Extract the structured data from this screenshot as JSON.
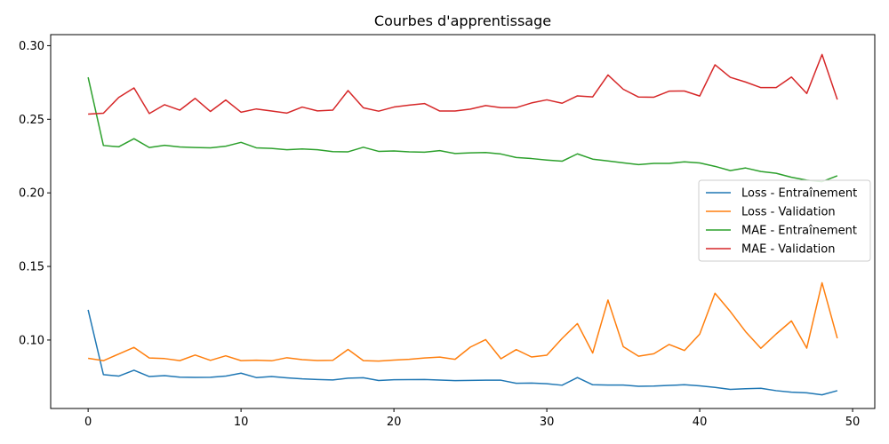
{
  "chart_data": {
    "type": "line",
    "title": "Courbes d'apprentissage",
    "xlabel": "",
    "ylabel": "",
    "xlim": [
      -2.45,
      51.45
    ],
    "ylim": [
      0.0535,
      0.3075
    ],
    "xticks": [
      0,
      10,
      20,
      30,
      40,
      50
    ],
    "yticks": [
      0.1,
      0.15,
      0.2,
      0.25,
      0.3
    ],
    "ytick_labels": [
      "0.10",
      "0.15",
      "0.20",
      "0.25",
      "0.30"
    ],
    "grid": false,
    "legend_position": "center-right",
    "x": [
      0,
      1,
      2,
      3,
      4,
      5,
      6,
      7,
      8,
      9,
      10,
      11,
      12,
      13,
      14,
      15,
      16,
      17,
      18,
      19,
      20,
      21,
      22,
      23,
      24,
      25,
      26,
      27,
      28,
      29,
      30,
      31,
      32,
      33,
      34,
      35,
      36,
      37,
      38,
      39,
      40,
      41,
      42,
      43,
      44,
      45,
      46,
      47,
      48,
      49
    ],
    "series": [
      {
        "name": "Loss - Entraînement",
        "color": "#1f77b4",
        "values": [
          0.1205,
          0.0765,
          0.0755,
          0.0795,
          0.0752,
          0.0758,
          0.0748,
          0.0746,
          0.0747,
          0.0755,
          0.0775,
          0.0745,
          0.0752,
          0.0743,
          0.0736,
          0.0732,
          0.0729,
          0.0741,
          0.0744,
          0.0725,
          0.073,
          0.0731,
          0.0732,
          0.0728,
          0.0724,
          0.0726,
          0.0727,
          0.0727,
          0.0706,
          0.0708,
          0.0703,
          0.0693,
          0.0745,
          0.0696,
          0.0694,
          0.0694,
          0.0686,
          0.0687,
          0.0692,
          0.0696,
          0.0689,
          0.0678,
          0.0665,
          0.0669,
          0.0672,
          0.0656,
          0.0646,
          0.0641,
          0.0628,
          0.0656
        ]
      },
      {
        "name": "Loss - Validation",
        "color": "#ff7f0e",
        "values": [
          0.0876,
          0.086,
          0.0905,
          0.095,
          0.0878,
          0.0874,
          0.086,
          0.0898,
          0.0862,
          0.0893,
          0.086,
          0.0863,
          0.0859,
          0.088,
          0.0867,
          0.0861,
          0.0862,
          0.0936,
          0.086,
          0.0857,
          0.0864,
          0.0869,
          0.0878,
          0.0884,
          0.0869,
          0.0952,
          0.1003,
          0.0873,
          0.0935,
          0.0885,
          0.0897,
          0.1011,
          0.1112,
          0.0912,
          0.1272,
          0.0955,
          0.089,
          0.0907,
          0.097,
          0.0929,
          0.104,
          0.1318,
          0.1194,
          0.1057,
          0.0944,
          0.1041,
          0.113,
          0.0945,
          0.1389,
          0.1012
        ]
      },
      {
        "name": "MAE - Entraînement",
        "color": "#2ca02c",
        "values": [
          0.2785,
          0.2322,
          0.2313,
          0.2368,
          0.2308,
          0.2323,
          0.2312,
          0.2308,
          0.2306,
          0.2317,
          0.2343,
          0.2306,
          0.2302,
          0.2293,
          0.2298,
          0.2293,
          0.228,
          0.2279,
          0.231,
          0.2282,
          0.2285,
          0.2279,
          0.2276,
          0.2287,
          0.2267,
          0.2272,
          0.2274,
          0.2264,
          0.224,
          0.2233,
          0.2223,
          0.2215,
          0.2265,
          0.2229,
          0.2217,
          0.2204,
          0.2192,
          0.22,
          0.22,
          0.2211,
          0.2203,
          0.218,
          0.2151,
          0.2169,
          0.2145,
          0.2133,
          0.2106,
          0.2086,
          0.2076,
          0.2116
        ]
      },
      {
        "name": "MAE - Validation",
        "color": "#d62728",
        "values": [
          0.2535,
          0.2541,
          0.2648,
          0.2713,
          0.2539,
          0.2599,
          0.2562,
          0.2642,
          0.2553,
          0.2631,
          0.2548,
          0.257,
          0.2556,
          0.2542,
          0.2583,
          0.2557,
          0.2562,
          0.2695,
          0.2578,
          0.2555,
          0.2583,
          0.2596,
          0.2607,
          0.2556,
          0.2556,
          0.2569,
          0.2593,
          0.2579,
          0.2579,
          0.2611,
          0.2632,
          0.2609,
          0.2659,
          0.2652,
          0.2801,
          0.2704,
          0.2651,
          0.265,
          0.2691,
          0.2692,
          0.2658,
          0.287,
          0.2785,
          0.2753,
          0.2715,
          0.2715,
          0.2787,
          0.2675,
          0.294,
          0.2634
        ]
      }
    ]
  }
}
